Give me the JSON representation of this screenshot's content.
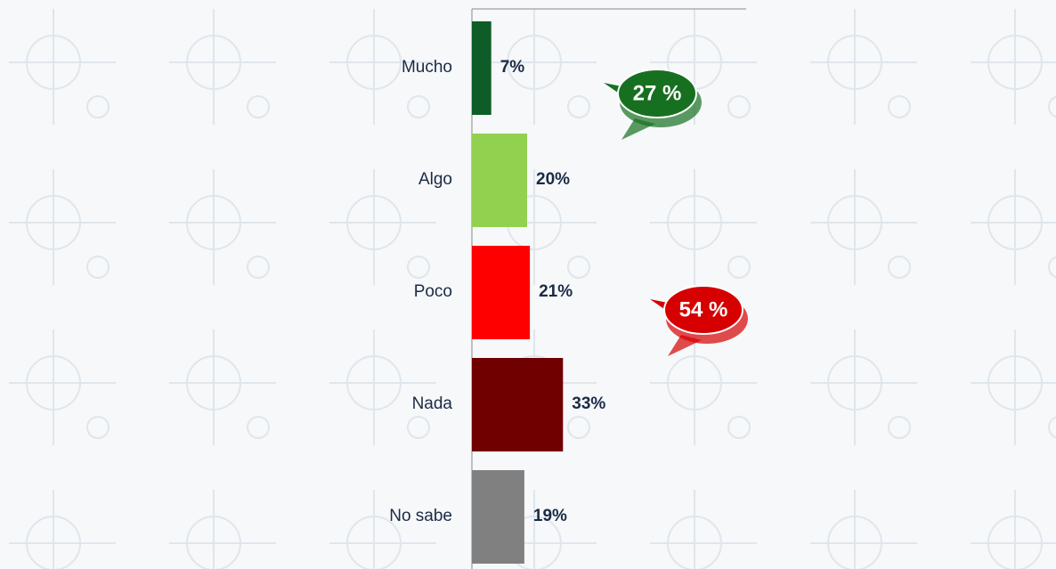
{
  "chart_data": {
    "type": "hbar",
    "categories": [
      "Mucho",
      "Algo",
      "Poco",
      "Nada",
      "No sabe"
    ],
    "values": [
      7,
      20,
      21,
      33,
      19
    ],
    "value_labels": [
      "7%",
      "20%",
      "21%",
      "33%",
      "19%"
    ],
    "colors": [
      "#0e5c28",
      "#92d050",
      "#ff0000",
      "#700000",
      "#808080"
    ],
    "xlim": [
      0,
      100
    ],
    "annotations": [
      {
        "text": "27 %",
        "color": "#17701f"
      },
      {
        "text": "54 %",
        "color": "#d60000"
      }
    ]
  }
}
